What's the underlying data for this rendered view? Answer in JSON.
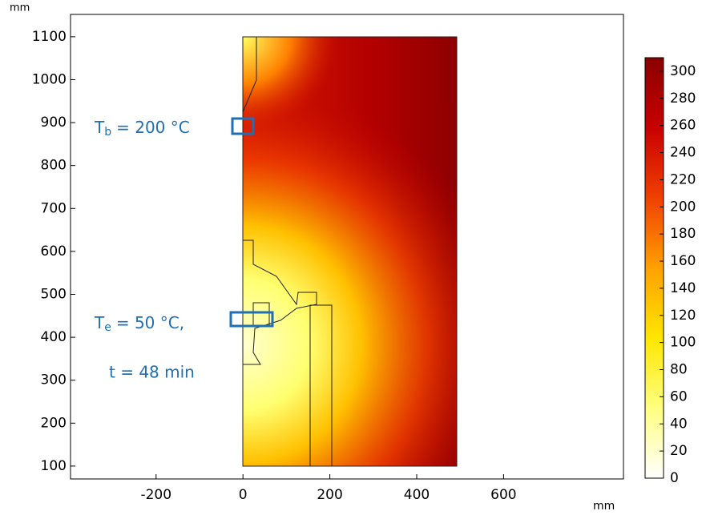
{
  "chart_data": {
    "type": "heatmap",
    "x_label": "mm",
    "y_label": "mm",
    "xlim": [
      -397,
      876
    ],
    "ylim": [
      70,
      1152
    ],
    "xticks": [
      -200,
      0,
      200,
      400,
      600
    ],
    "yticks": [
      100,
      200,
      300,
      400,
      500,
      600,
      700,
      800,
      900,
      1000,
      1100
    ],
    "colorbar": {
      "lim": [
        0,
        310
      ],
      "ticks": [
        0,
        20,
        40,
        60,
        80,
        100,
        120,
        140,
        160,
        180,
        200,
        220,
        240,
        260,
        280,
        300
      ],
      "colors": [
        "#ffffff",
        "#ffff80",
        "#ffe600",
        "#ffa000",
        "#f04000",
        "#c80000",
        "#8b0000"
      ]
    },
    "annotations": [
      {
        "symbol": "T",
        "subscript": "b",
        "text": "= 200 °C"
      },
      {
        "symbol": "T",
        "subscript": "e",
        "text": "= 50 °C,"
      },
      {
        "text": "t = 48 min"
      }
    ]
  }
}
